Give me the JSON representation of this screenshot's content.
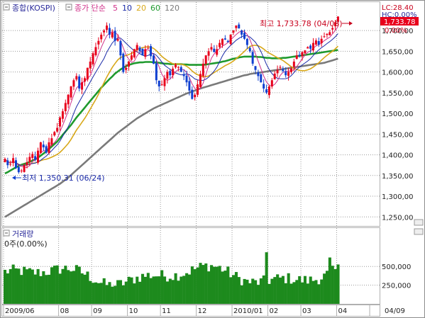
{
  "title": "종합(KOSPI)",
  "ma_legend": {
    "label": "종가 단순",
    "periods": [
      {
        "value": "5",
        "color": "#d0308a"
      },
      {
        "value": "10",
        "color": "#1a2aa8"
      },
      {
        "value": "20",
        "color": "#d8a81a"
      },
      {
        "value": "60",
        "color": "#1f9a2e"
      },
      {
        "value": "120",
        "color": "#7a7a7a"
      }
    ]
  },
  "readouts": {
    "lc": "LC:28.40",
    "hc": "HC:0.00%",
    "price_tag": "1,733.78",
    "pct": "0.00%"
  },
  "annotations": {
    "high": {
      "text": "최고 1,733.78 (04/08)",
      "value": 1733.78
    },
    "low": {
      "text": "최저 1,350.31 (06/24)",
      "value": 1350.31
    }
  },
  "volume_panel": {
    "title": "거래량",
    "readout": "0주(0.00%)"
  },
  "colors": {
    "up": "#e8001c",
    "down": "#1040d0",
    "ma5": "#d0308a",
    "ma10": "#1a2aa8",
    "ma20": "#d8a81a",
    "ma60": "#1f9a2e",
    "ma120": "#7a7a7a",
    "volume": "#1d8a1d",
    "grid": "#9a9a9a",
    "frame": "#8c8c8c"
  },
  "chart_data": [
    {
      "type": "candlestick",
      "title": "종합(KOSPI)",
      "ylim": [
        1230,
        1760
      ],
      "y_ticks": [
        "1,250,00",
        "1,300,00",
        "1,350,00",
        "1,400,00",
        "1,450,00",
        "1,500,00",
        "1,550,00",
        "1,600,00",
        "1,650,00",
        "1,700,00"
      ],
      "y_tick_values": [
        1250,
        1300,
        1350,
        1400,
        1450,
        1500,
        1550,
        1600,
        1650,
        1700
      ],
      "x_ticks": [
        "2009/06",
        "08",
        "09",
        "10",
        "11",
        "12",
        "2010/01",
        "02",
        "03",
        "04",
        "04/09"
      ],
      "x_tick_index": [
        0,
        20,
        32,
        45,
        57,
        70,
        83,
        96,
        108,
        121,
        133
      ],
      "n_slots": 137,
      "close": [
        1390,
        1375,
        1378,
        1392,
        1368,
        1358,
        1362,
        1375,
        1382,
        1395,
        1402,
        1388,
        1410,
        1430,
        1418,
        1405,
        1430,
        1440,
        1455,
        1465,
        1490,
        1505,
        1525,
        1545,
        1565,
        1580,
        1590,
        1560,
        1575,
        1585,
        1610,
        1625,
        1645,
        1660,
        1675,
        1690,
        1700,
        1712,
        1690,
        1695,
        1675,
        1680,
        1640,
        1600,
        1610,
        1625,
        1640,
        1655,
        1665,
        1650,
        1640,
        1655,
        1658,
        1638,
        1620,
        1580,
        1565,
        1570,
        1585,
        1600,
        1592,
        1608,
        1618,
        1612,
        1600,
        1590,
        1575,
        1555,
        1535,
        1545,
        1570,
        1595,
        1620,
        1640,
        1650,
        1660,
        1648,
        1655,
        1670,
        1680,
        1678,
        1672,
        1690,
        1700,
        1712,
        1705,
        1690,
        1680,
        1665,
        1650,
        1620,
        1605,
        1590,
        1575,
        1560,
        1550,
        1565,
        1580,
        1596,
        1605,
        1612,
        1602,
        1592,
        1600,
        1608,
        1625,
        1640,
        1638,
        1648,
        1652,
        1660,
        1656,
        1670,
        1676,
        1666,
        1680,
        1686,
        1692,
        1696,
        1706,
        1720,
        1733.78
      ],
      "series": [
        {
          "name": "5",
          "values": []
        },
        {
          "name": "10",
          "values": []
        },
        {
          "name": "20",
          "values": []
        },
        {
          "name": "60",
          "values": [
            1355,
            1358,
            1362,
            1366,
            1370,
            1373,
            1376,
            1378,
            1380,
            1383,
            1386,
            1389,
            1393,
            1398,
            1403,
            1408,
            1414,
            1420,
            1426,
            1432,
            1440,
            1448,
            1456,
            1464,
            1472,
            1481,
            1490,
            1498,
            1506,
            1514,
            1522,
            1530,
            1538,
            1546,
            1554,
            1562,
            1569,
            1576,
            1583,
            1589,
            1596,
            1601,
            1606,
            1610,
            1614,
            1617,
            1619,
            1621,
            1622,
            1623,
            1623,
            1624,
            1624,
            1624,
            1623,
            1623,
            1622,
            1621,
            1620,
            1620,
            1619,
            1619,
            1619,
            1619,
            1619,
            1618,
            1618,
            1617,
            1617,
            1617,
            1617,
            1617,
            1617,
            1618,
            1619,
            1620,
            1621,
            1622,
            1623,
            1625,
            1626,
            1628,
            1630,
            1632,
            1633,
            1635,
            1636,
            1637,
            1637,
            1637,
            1637,
            1637,
            1636,
            1636,
            1635,
            1634,
            1634,
            1633,
            1633,
            1633,
            1633,
            1634,
            1634,
            1635,
            1636,
            1637,
            1638,
            1639,
            1640,
            1641,
            1642,
            1643,
            1644,
            1645,
            1646,
            1647,
            1648,
            1649,
            1650,
            1651,
            1652,
            1653
          ]
        },
        {
          "name": "120",
          "values": [
            1250,
            1254,
            1258,
            1262,
            1266,
            1270,
            1274,
            1278,
            1282,
            1286,
            1290,
            1294,
            1298,
            1302,
            1306,
            1310,
            1314,
            1318,
            1322,
            1326,
            1330,
            1335,
            1340,
            1345,
            1351,
            1357,
            1363,
            1369,
            1375,
            1381,
            1387,
            1393,
            1399,
            1405,
            1411,
            1417,
            1423,
            1429,
            1435,
            1441,
            1447,
            1453,
            1458,
            1463,
            1468,
            1473,
            1478,
            1483,
            1488,
            1492,
            1496,
            1500,
            1504,
            1508,
            1512,
            1515,
            1518,
            1521,
            1524,
            1527,
            1530,
            1533,
            1536,
            1539,
            1542,
            1545,
            1548,
            1550,
            1553,
            1555,
            1558,
            1560,
            1562,
            1564,
            1566,
            1568,
            1570,
            1572,
            1574,
            1576,
            1578,
            1580,
            1582,
            1584,
            1586,
            1588,
            1590,
            1592,
            1593,
            1595,
            1596,
            1597,
            1598,
            1599,
            1600,
            1601,
            1602,
            1603,
            1604,
            1605,
            1606,
            1607,
            1608,
            1609,
            1610,
            1611,
            1612,
            1613,
            1614,
            1615,
            1616,
            1617,
            1618,
            1619,
            1620,
            1621,
            1622,
            1624,
            1626,
            1628,
            1630,
            1632
          ]
        }
      ]
    },
    {
      "type": "bar",
      "title": "거래량",
      "ylim": [
        0,
        900000
      ],
      "y_ticks": [
        "250,000",
        "500,000"
      ],
      "y_tick_values": [
        250000,
        500000
      ],
      "values": []
    }
  ]
}
